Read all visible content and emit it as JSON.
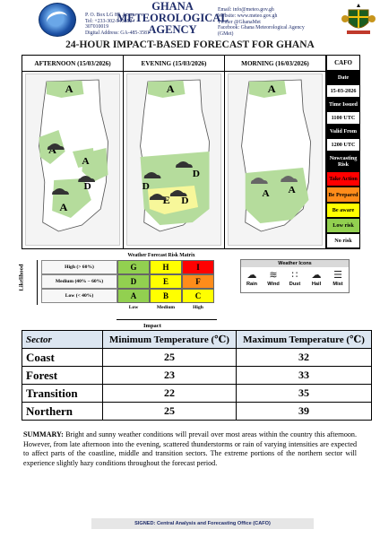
{
  "header": {
    "agency_name_line1": "GHANA METEOROLOGICAL",
    "agency_name_line2": "AGENCY",
    "address": [
      "P. O. Box LG 87, Accra",
      "Tel: +233-302-543252 /",
      "307010019",
      "Digital Address: GA-485-3581"
    ],
    "contact": [
      "Email: info@meteo.gov.gh",
      "Website: www.meteo.gov.gh",
      "Twitter @GhanaMet",
      "Facebook: Ghana Meteorological Agency",
      "(GMet)"
    ]
  },
  "title": "24-HOUR IMPACT-BASED FORECAST FOR GHANA",
  "panels": [
    {
      "label": "AFTERNOON (15/03/2026)"
    },
    {
      "label": "EVENING (15/03/2026)"
    },
    {
      "label": "MORNING (16/03/2026)"
    }
  ],
  "legend": {
    "cafo": "CAFO",
    "date_label": "Date",
    "date_value": "15-03-2026",
    "time_issued_label": "Time Issued",
    "time_issued_value": "1100 UTC",
    "valid_from_label": "Valid From",
    "valid_from_value": "1200 UTC",
    "nowcasting_label": "Nowcasting Risk",
    "take_action": "Take Action",
    "be_prepared": "Be Prepared",
    "be_aware": "Be aware",
    "low_risk": "Low risk",
    "no_risk": "No risk",
    "colors": {
      "take_action": "#ff0000",
      "be_prepared": "#ff8c1a",
      "be_aware": "#ffff00",
      "low_risk": "#92d050",
      "no_risk": "#ffffff"
    }
  },
  "matrix": {
    "title": "Weather Forecast Risk Matrix",
    "likelihood_label": "Likelihood",
    "impact_label": "Impact",
    "rows": [
      "High (> 60%)",
      "Medium (40% – 60%)",
      "Low (< 40%)"
    ],
    "columns": [
      "Low",
      "Medium",
      "High"
    ],
    "cells": [
      [
        "G",
        "H",
        "I"
      ],
      [
        "D",
        "E",
        "F"
      ],
      [
        "A",
        "B",
        "C"
      ]
    ],
    "cell_colors": [
      [
        "#92d050",
        "#ffff00",
        "#ff0000"
      ],
      [
        "#92d050",
        "#ffff00",
        "#ff8c1a"
      ],
      [
        "#92d050",
        "#ffff00",
        "#ffff00"
      ]
    ]
  },
  "weather_icons": {
    "title": "Weather Icons",
    "items": [
      {
        "name": "Rain",
        "icon": "rain-cloud-icon"
      },
      {
        "name": "Wind",
        "icon": "wind-icon"
      },
      {
        "name": "Dust",
        "icon": "dust-icon"
      },
      {
        "name": "Hail",
        "icon": "hail-icon"
      },
      {
        "name": "Mist",
        "icon": "mist-icon"
      }
    ]
  },
  "temperatures": {
    "headers": [
      "Sector",
      "Minimum Temperature (℃)",
      "Maximum Temperature (℃)"
    ],
    "rows": [
      {
        "sector": "Coast",
        "min": "25",
        "max": "32"
      },
      {
        "sector": "Forest",
        "min": "23",
        "max": "33"
      },
      {
        "sector": "Transition",
        "min": "22",
        "max": "35"
      },
      {
        "sector": "Northern",
        "min": "25",
        "max": "39"
      }
    ]
  },
  "summary": {
    "label": "SUMMARY:",
    "text": "Bright and sunny weather conditions will prevail over most areas within the country this afternoon. However, from late afternoon into the evening, scattered thunderstorms or rain of varying intensities are expected to affect parts of the coastline, middle and transition sectors. The extreme portions of the northern sector will experience slightly hazy conditions throughout the forecast period."
  },
  "signed": "SIGNED: Central Analysis and Forecasting Office (CAFO)"
}
